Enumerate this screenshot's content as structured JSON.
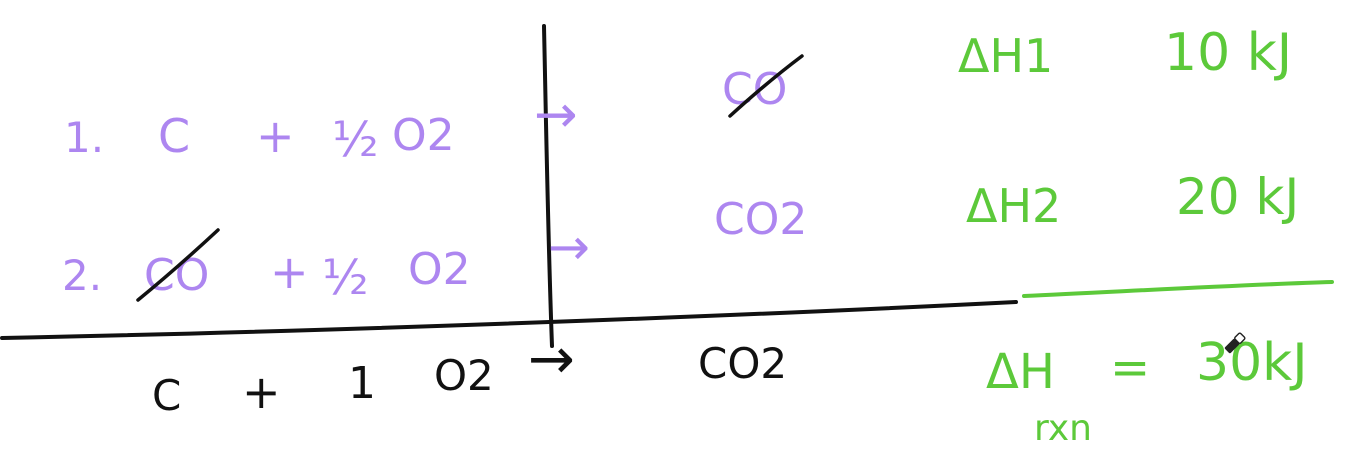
{
  "colors": {
    "ink_purple": "#ad86f0",
    "ink_green": "#5cc93a",
    "ink_black": "#111111",
    "background": "#ffffff"
  },
  "step1": {
    "number": "1.",
    "reactant_c": "C",
    "plus": "+",
    "coefficient": "½",
    "reactant_o2": "O2",
    "arrow": "→",
    "product": "CO",
    "product_struck": true,
    "enthalpy_label": "ΔH1",
    "enthalpy_value": "10 kJ"
  },
  "step2": {
    "number": "2.",
    "reactant_co": "CO",
    "reactant_co_struck": true,
    "plus": "+",
    "coefficient": "½",
    "reactant_o2": "O2",
    "arrow": "→",
    "product": "CO2",
    "enthalpy_label": "ΔH2",
    "enthalpy_value": "20 kJ"
  },
  "overall": {
    "reactant_c": "C",
    "plus": "+",
    "coefficient": "1",
    "reactant_o2": "O2",
    "arrow": "→",
    "product": "CO2",
    "enthalpy_label": "ΔH",
    "enthalpy_subscript": "rxn",
    "equals": "=",
    "enthalpy_value": "30kJ"
  },
  "cursor": {
    "icon": "eraser-icon"
  }
}
